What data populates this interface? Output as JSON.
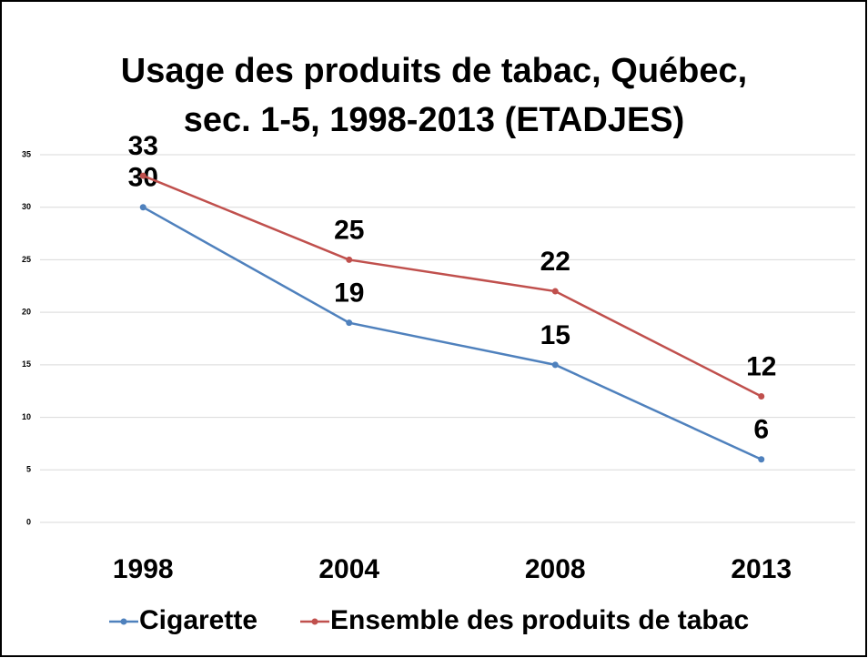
{
  "chart_data": {
    "type": "line",
    "title": [
      "Usage des produits de tabac, Québec,",
      "sec. 1-5, 1998-2013 (ETADJES)"
    ],
    "categories": [
      "1998",
      "2004",
      "2008",
      "2013"
    ],
    "series": [
      {
        "name": "Cigarette",
        "color": "#4f81bd",
        "values": [
          30,
          19,
          15,
          6
        ]
      },
      {
        "name": "Ensemble des produits de tabac",
        "color": "#c0504d",
        "values": [
          33,
          25,
          22,
          12
        ]
      }
    ],
    "ylim": [
      0,
      35
    ],
    "yticks": [
      0,
      5,
      10,
      15,
      20,
      25,
      30,
      35
    ],
    "grid": true,
    "legend": "bottom"
  }
}
